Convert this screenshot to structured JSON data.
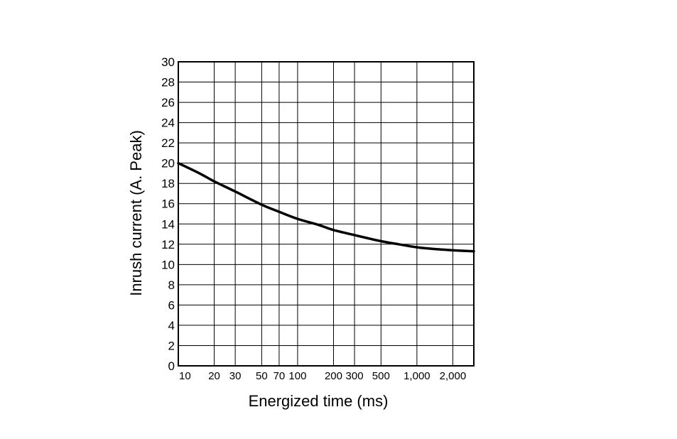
{
  "chart_data": {
    "type": "line",
    "title": "",
    "xlabel": "Energized time (ms)",
    "ylabel": "Inrush current (A. Peak)",
    "x_scale": "log",
    "xlim": [
      10,
      3000
    ],
    "ylim": [
      0,
      30
    ],
    "grid": true,
    "x_ticks": [
      10,
      20,
      30,
      50,
      70,
      100,
      200,
      300,
      500,
      1000,
      2000
    ],
    "x_tick_labels": [
      "10",
      "20",
      "30",
      "50",
      "70",
      "100",
      "200",
      "300",
      "500",
      "1,000",
      "2,000"
    ],
    "y_ticks": [
      0,
      2,
      4,
      6,
      8,
      10,
      12,
      14,
      16,
      18,
      20,
      22,
      24,
      26,
      28,
      30
    ],
    "y_tick_labels": [
      "0",
      "2",
      "4",
      "6",
      "8",
      "10",
      "12",
      "14",
      "16",
      "18",
      "20",
      "22",
      "24",
      "26",
      "28",
      "30"
    ],
    "series": [
      {
        "x": [
          10,
          15,
          20,
          30,
          50,
          70,
          100,
          150,
          200,
          300,
          500,
          700,
          1000,
          1500,
          2000,
          3000
        ],
        "y": [
          20.0,
          19.0,
          18.2,
          17.2,
          15.9,
          15.2,
          14.5,
          13.9,
          13.4,
          12.9,
          12.3,
          12.0,
          11.7,
          11.5,
          11.4,
          11.3
        ],
        "color": "#000000"
      }
    ]
  }
}
